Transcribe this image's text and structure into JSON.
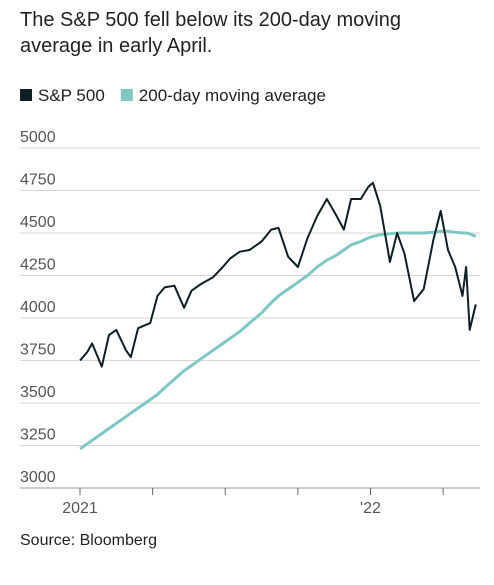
{
  "chart_data": {
    "type": "line",
    "title": "The S&P 500 fell below its 200-day moving average in early April.",
    "source": "Source: Bloomberg",
    "x": [
      0,
      0.3,
      0.5,
      0.9,
      1.2,
      1.5,
      1.9,
      2.1,
      2.4,
      2.9,
      3.2,
      3.5,
      3.9,
      4.3,
      4.6,
      5.0,
      5.5,
      5.9,
      6.2,
      6.6,
      7.0,
      7.5,
      7.9,
      8.2,
      8.6,
      9.0,
      9.4,
      9.8,
      10.2,
      10.6,
      10.9,
      11.2,
      11.6,
      11.9,
      12.1,
      12.4,
      12.8,
      13.1,
      13.4,
      13.8,
      14.2,
      14.6,
      14.9,
      15.2,
      15.5,
      15.8,
      15.95,
      16.1,
      16.35
    ],
    "series": [
      {
        "name": "S&P 500",
        "color": "#0d1f24",
        "values": [
          3750,
          3800,
          3850,
          3714,
          3900,
          3930,
          3810,
          3770,
          3940,
          3970,
          4130,
          4180,
          4190,
          4060,
          4160,
          4200,
          4240,
          4300,
          4350,
          4390,
          4400,
          4450,
          4520,
          4530,
          4360,
          4300,
          4470,
          4600,
          4700,
          4600,
          4520,
          4700,
          4700,
          4770,
          4796,
          4660,
          4330,
          4500,
          4380,
          4100,
          4170,
          4460,
          4630,
          4400,
          4300,
          4130,
          4300,
          3930,
          4080
        ]
      },
      {
        "name": "200-day moving average",
        "color": "#7fc7c3",
        "values": [
          3230,
          3260,
          3280,
          3320,
          3350,
          3380,
          3420,
          3440,
          3470,
          3520,
          3550,
          3590,
          3640,
          3690,
          3720,
          3760,
          3810,
          3850,
          3880,
          3920,
          3970,
          4030,
          4090,
          4130,
          4170,
          4210,
          4250,
          4300,
          4340,
          4370,
          4400,
          4430,
          4450,
          4470,
          4480,
          4490,
          4495,
          4500,
          4500,
          4500,
          4500,
          4505,
          4510,
          4510,
          4505,
          4500,
          4500,
          4495,
          4480
        ]
      }
    ],
    "xlim": [
      0,
      16.4
    ],
    "xticks": [
      {
        "value": 0,
        "label": "2021"
      },
      {
        "value": 3,
        "label": null
      },
      {
        "value": 6,
        "label": null
      },
      {
        "value": 9,
        "label": null
      },
      {
        "value": 12,
        "label": "'22"
      },
      {
        "value": 15,
        "label": null
      }
    ],
    "ylim": [
      3000,
      5000
    ],
    "yticks": [
      3000,
      3250,
      3500,
      3750,
      4000,
      4250,
      4500,
      4750,
      5000
    ],
    "grid": true
  }
}
